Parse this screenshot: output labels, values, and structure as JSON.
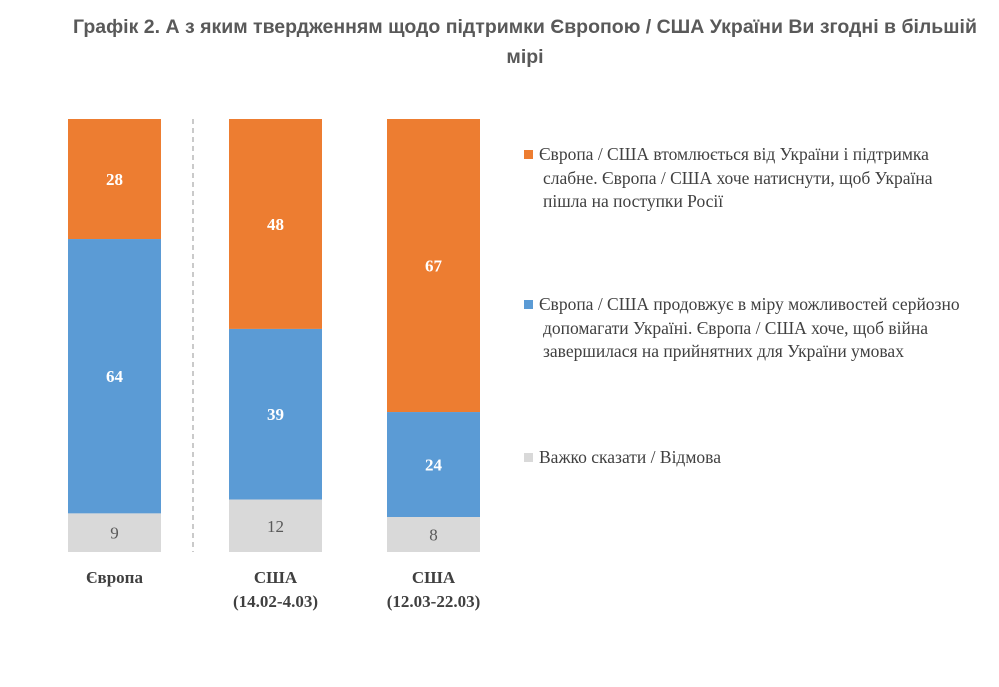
{
  "title": "Графік 2. А з яким твердженням щодо підтримки Європою / США України Ви згодні в більшій мірі",
  "colors": {
    "orange": "#ED7D31",
    "blue": "#5B9BD5",
    "gray": "#D9D9D9"
  },
  "chart_data": {
    "type": "bar",
    "stacked": true,
    "percent": true,
    "categories": [
      [
        "Європа"
      ],
      [
        "США",
        "(14.02-4.03)"
      ],
      [
        "США",
        "(12.03-22.03)"
      ]
    ],
    "series": [
      {
        "name": "Європа / США втомлюється від України і підтримка слабне. Європа / США хоче натиснути, щоб Україна пішла на поступки Росії",
        "color": "#ED7D31",
        "values": [
          28,
          48,
          67
        ]
      },
      {
        "name": "Європа / США продовжує в міру можливостей серйозно допомагати Україні. Європа / США хоче, щоб війна завершилася на прийнятних для України умовах",
        "color": "#5B9BD5",
        "values": [
          64,
          39,
          24
        ]
      },
      {
        "name": "Важко сказати / Відмова",
        "color": "#D9D9D9",
        "values": [
          9,
          12,
          8
        ]
      }
    ],
    "legend_position": "right",
    "grid": false,
    "separator_after_category": 0
  }
}
